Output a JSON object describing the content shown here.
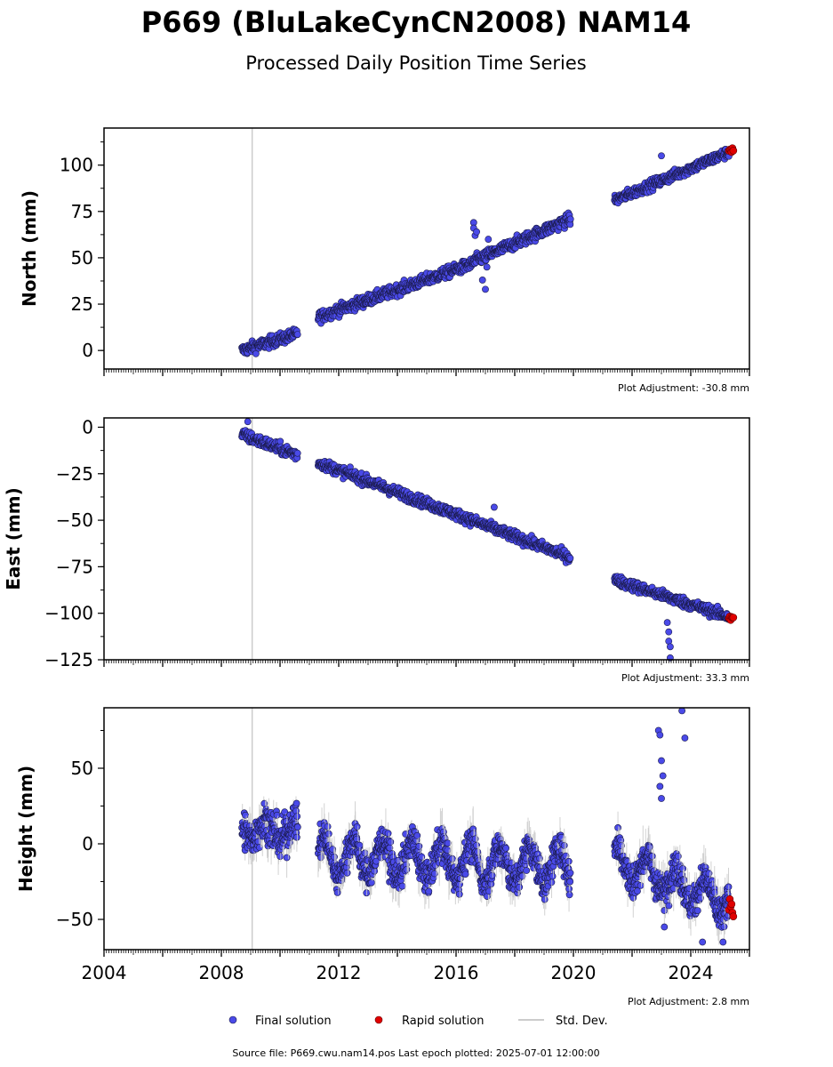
{
  "title": "P669 (BluLakeCynCN2008) NAM14",
  "subtitle": "Processed Daily Position Time Series",
  "footer": "Source file: P669.cwu.nam14.pos  Last epoch plotted: 2025-07-01 12:00:00",
  "legend": {
    "position": "bottom-center",
    "items": [
      {
        "label": "Final solution",
        "color": "#4a4ae8"
      },
      {
        "label": "Rapid solution",
        "color": "#e00000"
      },
      {
        "label": "Std. Dev.",
        "color": "#cccccc"
      }
    ]
  },
  "colors": {
    "final": "#4a4ae8",
    "rapid": "#e00000",
    "stddev": "#c8c8c8",
    "outline": "#1a1a4a"
  },
  "chart_data": [
    {
      "type": "scatter",
      "ylabel": "North (mm)",
      "adjustment": "Plot Adjustment: -30.8 mm",
      "xlim": [
        2004,
        2026
      ],
      "ylim": [
        -10,
        120
      ],
      "yticks": [
        0,
        25,
        50,
        75,
        100
      ],
      "ytick_labels": [
        "0",
        "25",
        "50",
        "75",
        "100"
      ],
      "vline": 2009.05,
      "segments": [
        {
          "start": 2008.7,
          "end": 2010.6,
          "y0": 0,
          "y1": 9,
          "noise": 2.2
        },
        {
          "start": 2011.3,
          "end": 2016.6,
          "y0": 18,
          "y1": 47,
          "noise": 2.2
        },
        {
          "start": 2016.6,
          "end": 2019.9,
          "y0": 48,
          "y1": 71,
          "noise": 2.3
        },
        {
          "start": 2021.4,
          "end": 2025.3,
          "y0": 81,
          "y1": 107,
          "noise": 2.0
        }
      ],
      "outliers": [
        [
          2016.6,
          69
        ],
        [
          2016.6,
          66
        ],
        [
          2016.65,
          62
        ],
        [
          2016.7,
          64
        ],
        [
          2016.9,
          38
        ],
        [
          2017.0,
          33
        ],
        [
          2017.05,
          45
        ],
        [
          2017.1,
          60
        ],
        [
          2023.0,
          105
        ]
      ],
      "rapid": {
        "start": 2025.3,
        "end": 2025.45,
        "y": 108
      }
    },
    {
      "type": "scatter",
      "ylabel": "East (mm)",
      "adjustment": "Plot Adjustment: 33.3 mm",
      "xlim": [
        2004,
        2026
      ],
      "ylim": [
        -125,
        5
      ],
      "yticks": [
        0,
        -25,
        -50,
        -75,
        -100,
        -125
      ],
      "ytick_labels": [
        "0",
        "−25",
        "−50",
        "−75",
        "−100",
        "−125"
      ],
      "vline": 2009.05,
      "segments": [
        {
          "start": 2008.7,
          "end": 2010.6,
          "y0": -4,
          "y1": -15,
          "noise": 2.2
        },
        {
          "start": 2011.3,
          "end": 2019.9,
          "y0": -19,
          "y1": -70,
          "noise": 2.0
        },
        {
          "start": 2021.4,
          "end": 2025.3,
          "y0": -82,
          "y1": -102,
          "noise": 2.0
        }
      ],
      "outliers": [
        [
          2008.9,
          3
        ],
        [
          2017.3,
          -43
        ],
        [
          2023.2,
          -105
        ],
        [
          2023.25,
          -110
        ],
        [
          2023.25,
          -115
        ],
        [
          2023.3,
          -118
        ],
        [
          2023.3,
          -124
        ]
      ],
      "rapid": {
        "start": 2025.3,
        "end": 2025.45,
        "y": -103
      }
    },
    {
      "type": "scatter",
      "ylabel": "Height (mm)",
      "adjustment": "Plot Adjustment: 2.8 mm",
      "xlim": [
        2004,
        2026
      ],
      "ylim": [
        -70,
        90
      ],
      "yticks": [
        50,
        0,
        -50
      ],
      "ytick_labels": [
        "50",
        "0",
        "−50"
      ],
      "xticks": [
        2004,
        2008,
        2012,
        2016,
        2020,
        2024
      ],
      "xtick_labels": [
        "2004",
        "2008",
        "2012",
        "2016",
        "2020",
        "2024"
      ],
      "vline": 2009.05,
      "segments": [
        {
          "start": 2008.7,
          "end": 2010.6,
          "y0": 10,
          "y1": 8,
          "noise": 9,
          "seasonal": 6
        },
        {
          "start": 2011.3,
          "end": 2019.9,
          "y0": -8,
          "y1": -15,
          "noise": 8,
          "seasonal": 12
        },
        {
          "start": 2021.4,
          "end": 2025.3,
          "y0": -10,
          "y1": -40,
          "noise": 8,
          "seasonal": 10
        }
      ],
      "outliers": [
        [
          2022.9,
          75
        ],
        [
          2022.95,
          72
        ],
        [
          2023.0,
          55
        ],
        [
          2023.05,
          45
        ],
        [
          2022.95,
          38
        ],
        [
          2023.0,
          30
        ],
        [
          2023.7,
          88
        ],
        [
          2023.8,
          70
        ],
        [
          2023.1,
          -55
        ],
        [
          2024.4,
          -65
        ],
        [
          2025.1,
          -65
        ]
      ],
      "rapid": {
        "start": 2025.3,
        "end": 2025.45,
        "y": -42
      }
    }
  ]
}
